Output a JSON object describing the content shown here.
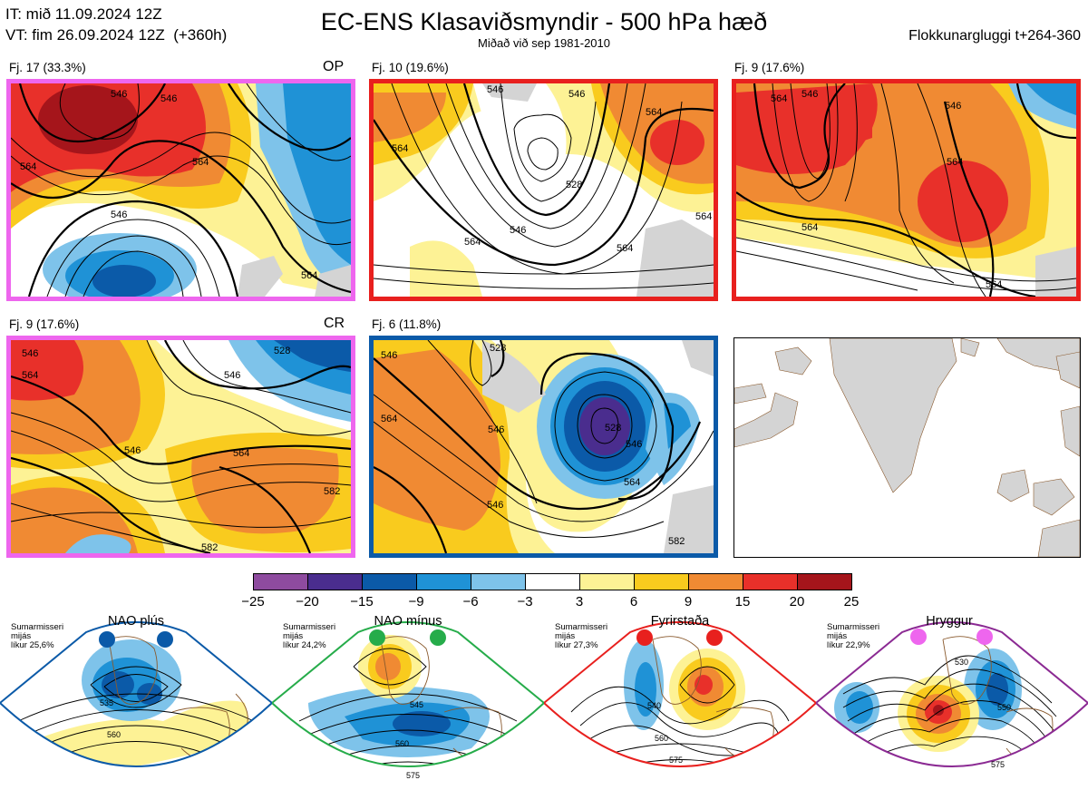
{
  "header": {
    "it_line": "IT: mið 11.09.2024 12Z",
    "vt_line": "VT: fim 26.09.2024 12Z  (+360h)",
    "title": "EC-ENS Klasaviðsmyndir - 500 hPa hæð",
    "subtitle": "Miðað við sep 1981-2010",
    "window": "Flokkunargluggi t+264-360"
  },
  "panels": [
    {
      "label": "Fj. 17 (33.3%)",
      "tag": "OP",
      "border": "#ee66ee"
    },
    {
      "label": "Fj. 10 (19.6%)",
      "tag": "",
      "border": "#e8201e"
    },
    {
      "label": "Fj. 9 (17.6%)",
      "tag": "",
      "border": "#e8201e"
    },
    {
      "label": "Fj. 9 (17.6%)",
      "tag": "CR",
      "border": "#ee66ee"
    },
    {
      "label": "Fj. 6 (11.8%)",
      "tag": "",
      "border": "#0b5aa8"
    }
  ],
  "contour_labels": {
    "p0": [
      "564",
      "546",
      "546",
      "564",
      "546",
      "564"
    ],
    "p1": [
      "546",
      "546",
      "564",
      "546",
      "564",
      "564",
      "528",
      "564",
      "564"
    ],
    "p2": [
      "564",
      "546",
      "546",
      "564",
      "564",
      "564"
    ],
    "p3": [
      "546",
      "528",
      "546",
      "564",
      "546",
      "564",
      "582",
      "582"
    ],
    "p4": [
      "546",
      "528",
      "546",
      "528",
      "546",
      "564",
      "564",
      "546",
      "582"
    ]
  },
  "colorbar": {
    "ticks": [
      "−25",
      "−20",
      "−15",
      "−9",
      "−6",
      "−3",
      "3",
      "6",
      "9",
      "15",
      "20",
      "25"
    ],
    "colors": [
      "#8e4b9f",
      "#4a2d8e",
      "#0b5aa8",
      "#1f92d6",
      "#7ec3ea",
      "#ffffff",
      "#fdf295",
      "#f9cb1e",
      "#f08a33",
      "#e8302a",
      "#a5151b"
    ]
  },
  "regimes": [
    {
      "name": "NAO plús",
      "info": [
        "Sumarmisseri",
        "mijás",
        "líkur 25,6%"
      ],
      "color": "#0b5aa8",
      "labels": [
        "535",
        "560"
      ]
    },
    {
      "name": "NAO mínus",
      "info": [
        "Sumarmisseri",
        "mijás",
        "líkur 24,2%"
      ],
      "color": "#26ac4a",
      "labels": [
        "545",
        "560",
        "575"
      ]
    },
    {
      "name": "Fyrirstaða",
      "info": [
        "Sumarmisseri",
        "mijás",
        "líkur 27,3%"
      ],
      "color": "#e8201e",
      "labels": [
        "540",
        "560",
        "575"
      ]
    },
    {
      "name": "Hryggur",
      "info": [
        "Sumarmisseri",
        "mijás",
        "líkur 22,9%"
      ],
      "color": "#8b2a93",
      "labels": [
        "530",
        "550",
        "575"
      ]
    }
  ]
}
